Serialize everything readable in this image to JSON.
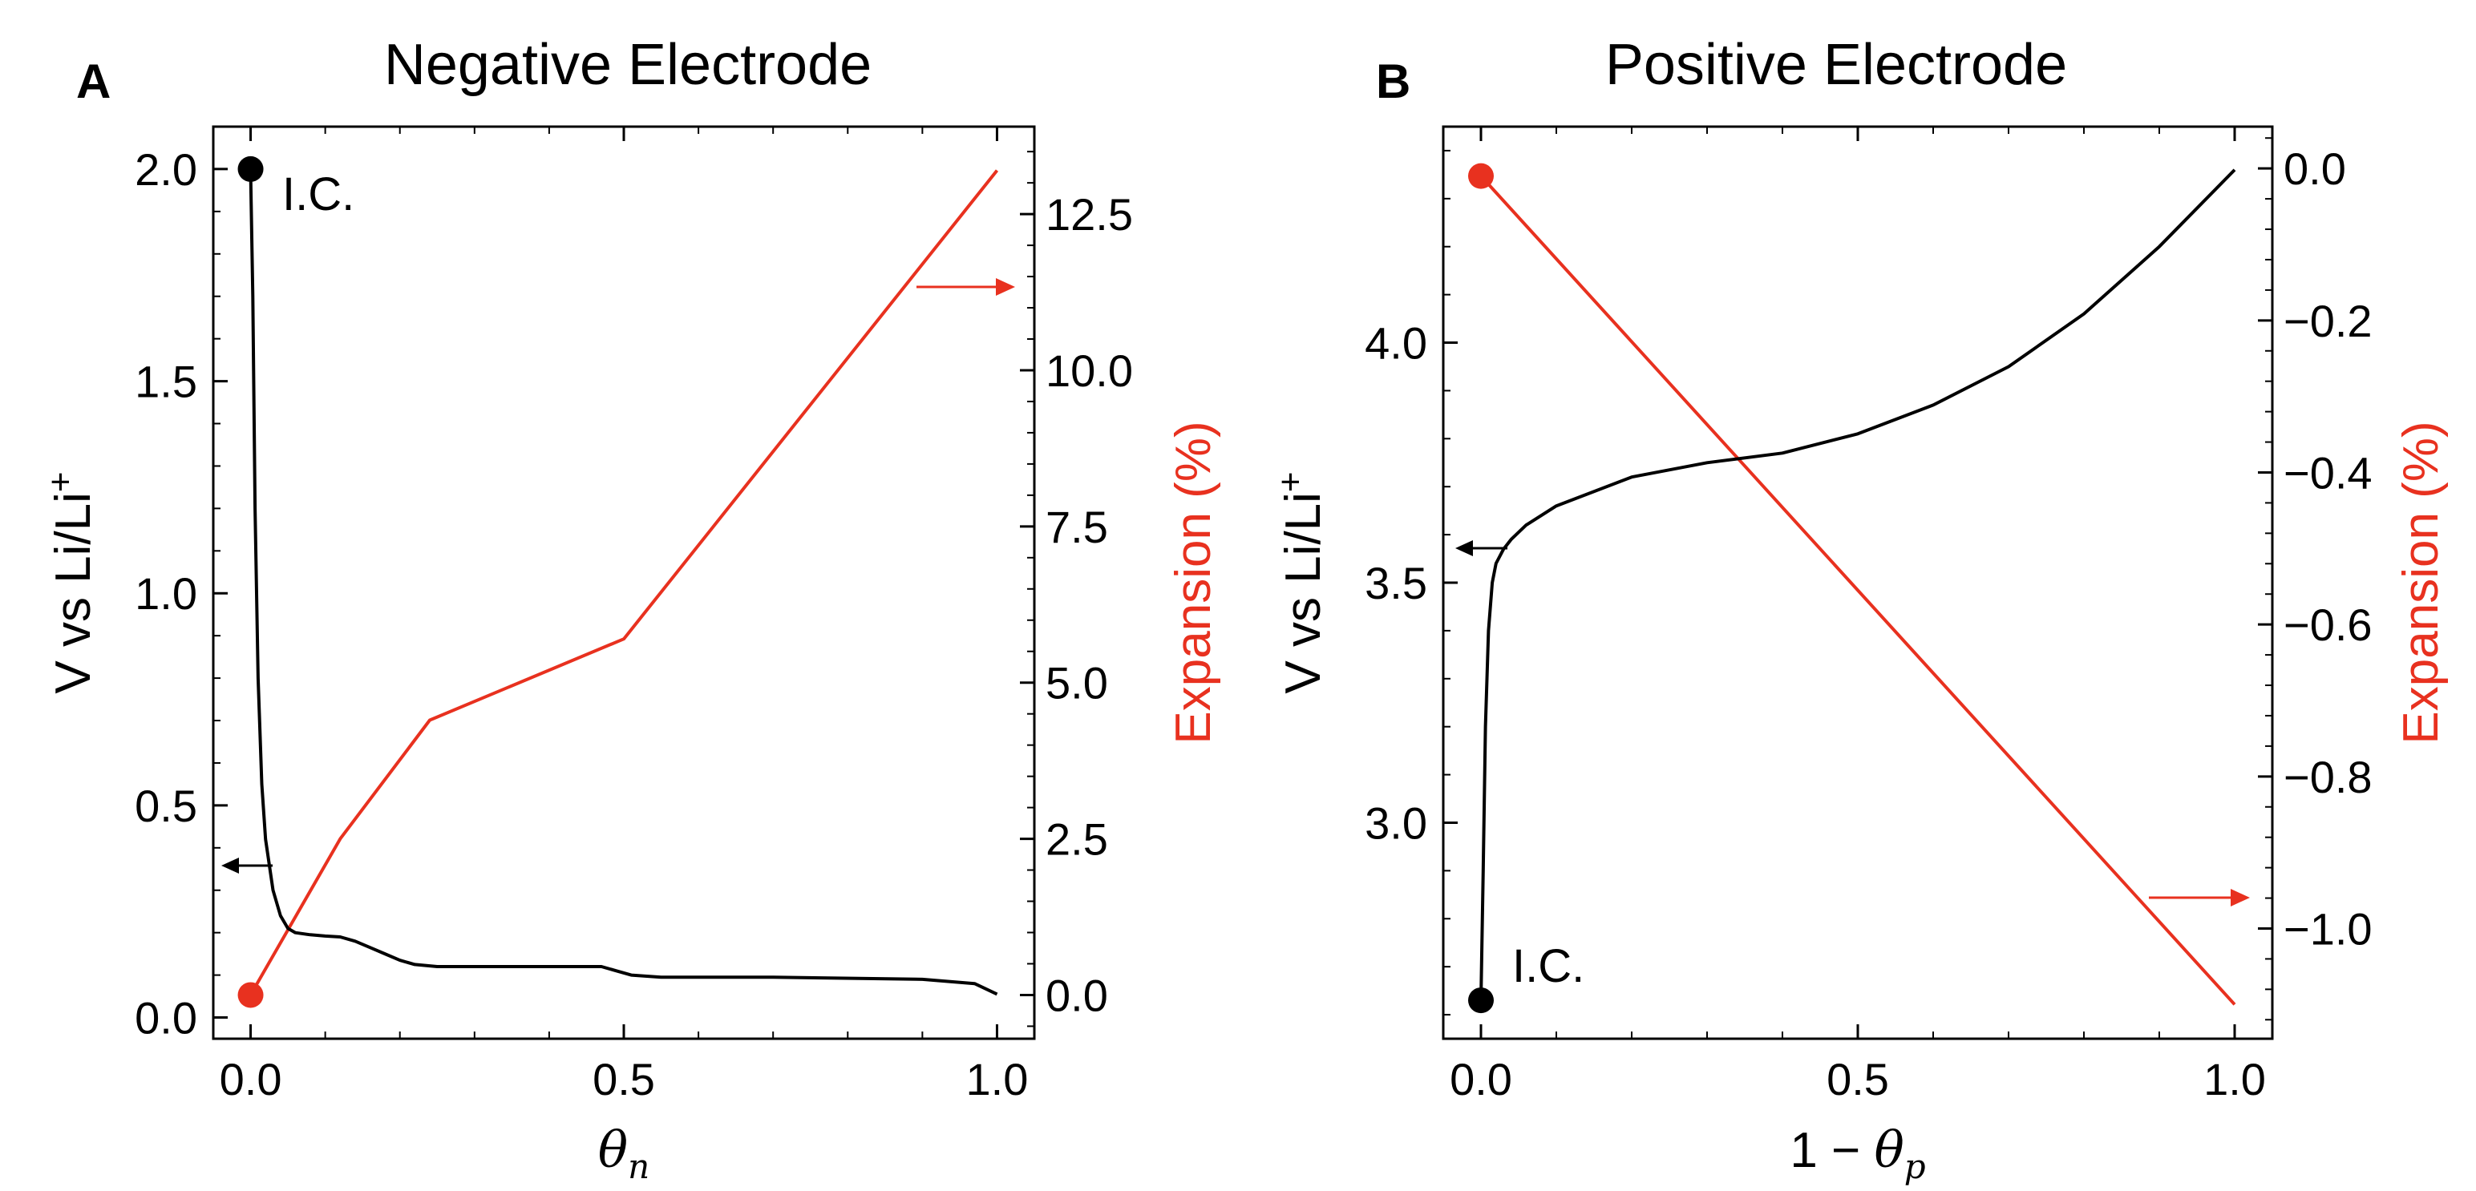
{
  "chart_data": [
    {
      "type": "line",
      "panel": "A",
      "title": "Negative Electrode",
      "xlabel_symbol": "θ",
      "xlabel_sub": "n",
      "ylabel_left": "V vs Li/Li",
      "ylabel_left_sup": "+",
      "ylabel_right": "Expansion (%)",
      "xlim": [
        -0.05,
        1.05
      ],
      "ylim_left": [
        -0.05,
        2.1
      ],
      "ylim_right": [
        -0.7,
        13.9
      ],
      "xticks": [
        "0.0",
        "0.5",
        "1.0"
      ],
      "yticks_left": [
        "0.0",
        "0.5",
        "1.0",
        "1.5",
        "2.0"
      ],
      "yticks_right": [
        "0.0",
        "2.5",
        "5.0",
        "7.5",
        "10.0",
        "12.5"
      ],
      "annotation": "I.C.",
      "colors": {
        "voltage": "#000000",
        "expansion": "#e8311f"
      },
      "series": [
        {
          "name": "Voltage",
          "axis": "left",
          "x": [
            0.0,
            0.003,
            0.006,
            0.01,
            0.015,
            0.02,
            0.03,
            0.04,
            0.05,
            0.06,
            0.08,
            0.1,
            0.12,
            0.14,
            0.16,
            0.18,
            0.2,
            0.22,
            0.25,
            0.3,
            0.4,
            0.47,
            0.49,
            0.51,
            0.55,
            0.7,
            0.9,
            0.97,
            1.0
          ],
          "y": [
            2.0,
            1.7,
            1.2,
            0.8,
            0.55,
            0.42,
            0.3,
            0.24,
            0.21,
            0.2,
            0.195,
            0.192,
            0.19,
            0.18,
            0.165,
            0.15,
            0.135,
            0.125,
            0.12,
            0.12,
            0.12,
            0.12,
            0.11,
            0.1,
            0.095,
            0.095,
            0.09,
            0.08,
            0.055
          ]
        },
        {
          "name": "Expansion",
          "axis": "right",
          "x": [
            0.0,
            0.12,
            0.24,
            0.5,
            1.0
          ],
          "y": [
            0.0,
            2.5,
            4.4,
            5.7,
            13.2
          ]
        }
      ],
      "markers": [
        {
          "series": "Voltage",
          "x": 0.0,
          "y": 2.0,
          "color": "#000000"
        },
        {
          "series": "Expansion",
          "x": 0.0,
          "y": 0.0,
          "color": "#e8311f"
        }
      ]
    },
    {
      "type": "line",
      "panel": "B",
      "title": "Positive Electrode",
      "xlabel_prefix": "1 − ",
      "xlabel_symbol": "θ",
      "xlabel_sub": "p",
      "ylabel_left": "V vs Li/Li",
      "ylabel_left_sup": "+",
      "ylabel_right": "Expansion (%)",
      "xlim": [
        -0.05,
        1.05
      ],
      "ylim_left": [
        2.55,
        4.45
      ],
      "ylim_right": [
        -1.145,
        0.055
      ],
      "xticks": [
        "0.0",
        "0.5",
        "1.0"
      ],
      "yticks_left": [
        "3.0",
        "3.5",
        "4.0"
      ],
      "yticks_right": [
        "0.0",
        "−0.2",
        "−0.4",
        "−0.6",
        "−0.8",
        "−1.0"
      ],
      "annotation": "I.C.",
      "colors": {
        "voltage": "#000000",
        "expansion": "#e8311f"
      },
      "series": [
        {
          "name": "Voltage",
          "axis": "left",
          "x": [
            0.0,
            0.003,
            0.006,
            0.01,
            0.015,
            0.02,
            0.03,
            0.04,
            0.06,
            0.1,
            0.2,
            0.3,
            0.4,
            0.5,
            0.6,
            0.7,
            0.8,
            0.9,
            1.0
          ],
          "y": [
            2.63,
            2.9,
            3.2,
            3.4,
            3.5,
            3.54,
            3.57,
            3.59,
            3.62,
            3.66,
            3.72,
            3.75,
            3.77,
            3.81,
            3.87,
            3.95,
            4.06,
            4.2,
            4.36
          ]
        },
        {
          "name": "Expansion",
          "axis": "right",
          "x": [
            0.0,
            1.0
          ],
          "y": [
            -0.01,
            -1.1
          ]
        }
      ],
      "markers": [
        {
          "series": "Voltage",
          "x": 0.0,
          "y": 2.63,
          "color": "#000000"
        },
        {
          "series": "Expansion",
          "x": 0.0,
          "y": -0.01,
          "color": "#e8311f"
        }
      ]
    }
  ]
}
